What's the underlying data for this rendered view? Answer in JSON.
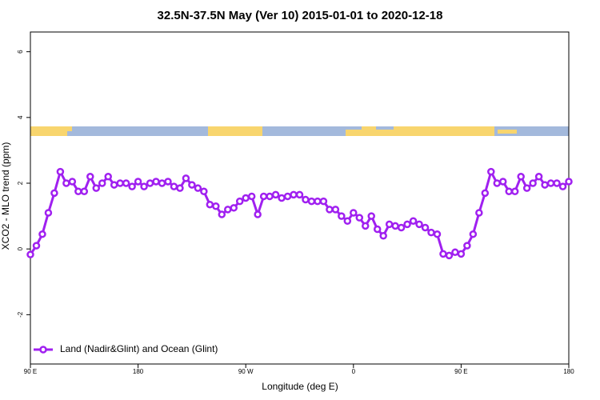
{
  "chart_data": {
    "type": "line",
    "title": "32.5N-37.5N May (Ver 10)   2015-01-01 to 2020-12-18",
    "x_label": "Longitude (deg E)",
    "y_label": "XCO2 - MLO trend (ppm)",
    "xlim": [
      90,
      540
    ],
    "ylim": [
      -3.5,
      6.6
    ],
    "xticks": [
      {
        "value": 90,
        "label": "90 E"
      },
      180,
      {
        "value": 270,
        "label": "90 W"
      },
      {
        "value": 360,
        "label": "0"
      },
      {
        "value": 450,
        "label": "90 E"
      },
      {
        "value": 540,
        "label": "180"
      }
    ],
    "yticks": [
      -2,
      0,
      2,
      4,
      6
    ],
    "legend": "bottomleft",
    "x": [
      90,
      95,
      100,
      105,
      110,
      115,
      120,
      125,
      130,
      135,
      140,
      145,
      150,
      155,
      160,
      165,
      170,
      175,
      180,
      185,
      190,
      195,
      200,
      205,
      210,
      215,
      220,
      225,
      230,
      235,
      240,
      245,
      250,
      255,
      260,
      265,
      270,
      275,
      280,
      285,
      290,
      295,
      300,
      305,
      310,
      315,
      320,
      325,
      330,
      335,
      340,
      345,
      350,
      355,
      360,
      365,
      370,
      375,
      380,
      385,
      390,
      395,
      400,
      405,
      410,
      415,
      420,
      425,
      430,
      435,
      440,
      445,
      450,
      455,
      460,
      465,
      470,
      475,
      480,
      485,
      490,
      495,
      500,
      505,
      510,
      515,
      520,
      525,
      530,
      535,
      540
    ],
    "series": [
      {
        "name": "Land (Nadir&Glint) and Ocean (Glint)",
        "color": "#a020f0",
        "values": [
          -0.17,
          0.1,
          0.45,
          1.1,
          1.7,
          2.35,
          2.0,
          2.05,
          1.75,
          1.75,
          2.2,
          1.85,
          2.0,
          2.2,
          1.95,
          2.0,
          2.0,
          1.9,
          2.05,
          1.9,
          2.0,
          2.05,
          2.0,
          2.05,
          1.9,
          1.85,
          2.15,
          1.95,
          1.85,
          1.75,
          1.35,
          1.3,
          1.05,
          1.2,
          1.25,
          1.45,
          1.55,
          1.6,
          1.05,
          1.6,
          1.6,
          1.65,
          1.55,
          1.6,
          1.65,
          1.65,
          1.5,
          1.45,
          1.45,
          1.45,
          1.2,
          1.2,
          1.0,
          0.85,
          1.1,
          0.95,
          0.7,
          1.0,
          0.6,
          0.4,
          0.75,
          0.7,
          0.65,
          0.75,
          0.85,
          0.75,
          0.65,
          0.5,
          0.45,
          -0.15,
          -0.2,
          -0.1,
          -0.15,
          0.1,
          0.45,
          1.1,
          1.7,
          2.35,
          2.0,
          2.05,
          1.75,
          1.75,
          2.2,
          1.85,
          2.0,
          2.2,
          1.95,
          2.0,
          2.0,
          1.9,
          2.05
        ]
      }
    ]
  }
}
